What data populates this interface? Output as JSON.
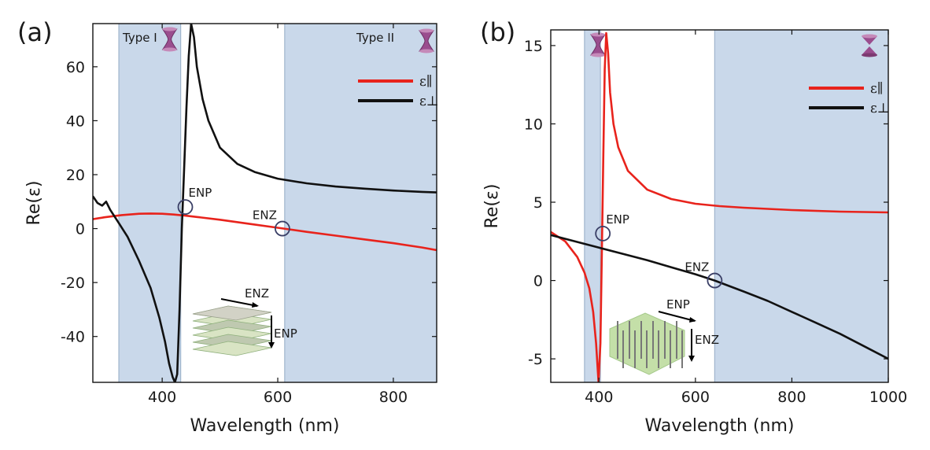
{
  "colors": {
    "band": "#c9d8ea",
    "band_edge": "#9fb4cc",
    "parallel": "#e8231c",
    "perpendicular": "#111111",
    "marker": "#3a3f66",
    "hourglass": "#9a4d8e",
    "inset_a": "#bfc9b0",
    "inset_b": "#c4dfa8"
  },
  "chart_data": [
    {
      "panel_label": "(a)",
      "type": "line",
      "xlabel": "Wavelength (nm)",
      "ylabel": "Re(ε)",
      "xlim": [
        280,
        875
      ],
      "ylim": [
        -57,
        76
      ],
      "xticks": [
        400,
        600,
        800
      ],
      "yticks": [
        -40,
        -20,
        0,
        20,
        40,
        60
      ],
      "grid": false,
      "legend_position": "top-right",
      "shaded_regions": [
        {
          "x0": 325,
          "x1": 432,
          "label": "Type I",
          "icon": "hourglass-type-i-icon"
        },
        {
          "x0": 612,
          "x1": 875,
          "label": "Type II",
          "icon": "hourglass-type-ii-icon"
        }
      ],
      "series": [
        {
          "name": "ε∥",
          "color_key": "parallel",
          "x": [
            280,
            300,
            330,
            360,
            380,
            400,
            420,
            440,
            460,
            500,
            550,
            600,
            650,
            700,
            750,
            800,
            850,
            875
          ],
          "y": [
            3.5,
            4.2,
            5.0,
            5.5,
            5.6,
            5.5,
            5.2,
            4.8,
            4.3,
            3.3,
            1.8,
            0.3,
            -1.2,
            -2.6,
            -4.0,
            -5.4,
            -7.0,
            -8.0
          ]
        },
        {
          "name": "ε⊥",
          "color_key": "perpendicular",
          "x": [
            280,
            288,
            296,
            303,
            310,
            325,
            340,
            360,
            380,
            395,
            405,
            412,
            418,
            422,
            426,
            430,
            434,
            438,
            442,
            446,
            450,
            455,
            460,
            470,
            480,
            500,
            530,
            560,
            600,
            650,
            700,
            750,
            800,
            850,
            875
          ],
          "y": [
            12.0,
            9.5,
            8.5,
            10.0,
            7.0,
            2.0,
            -3.0,
            -12.0,
            -22.0,
            -33.0,
            -42.0,
            -50.0,
            -55.0,
            -57.0,
            -54.0,
            -30.0,
            0.0,
            22.0,
            45.0,
            64.0,
            76.0,
            71.0,
            60.0,
            48.0,
            40.0,
            30.0,
            24.0,
            21.0,
            18.5,
            16.8,
            15.6,
            14.8,
            14.1,
            13.6,
            13.4
          ]
        }
      ],
      "annotations": [
        {
          "text": "ENP",
          "x": 440,
          "y": 8
        },
        {
          "text": "ENZ",
          "x": 608,
          "y": 0
        }
      ],
      "inset_arrows": [
        "ENZ",
        "ENP"
      ]
    },
    {
      "panel_label": "(b)",
      "type": "line",
      "xlabel": "Wavelength (nm)",
      "ylabel": "Re(ε)",
      "xlim": [
        300,
        1000
      ],
      "ylim": [
        -6.5,
        16
      ],
      "xticks": [
        400,
        600,
        800,
        1000
      ],
      "yticks": [
        -5,
        0,
        5,
        10,
        15
      ],
      "grid": false,
      "legend_position": "top-right",
      "shaded_regions": [
        {
          "x0": 370,
          "x1": 403,
          "label": "",
          "icon": "hourglass-type-i-icon"
        },
        {
          "x0": 640,
          "x1": 1000,
          "label": "",
          "icon": "hourglass-type-ii-icon"
        }
      ],
      "series": [
        {
          "name": "ε∥",
          "color_key": "parallel",
          "x": [
            300,
            330,
            355,
            370,
            380,
            388,
            394,
            399,
            403,
            406,
            409,
            412,
            415,
            419,
            423,
            430,
            440,
            460,
            500,
            550,
            600,
            650,
            700,
            800,
            900,
            1000
          ],
          "y": [
            3.1,
            2.5,
            1.5,
            0.5,
            -0.5,
            -2.0,
            -4.0,
            -6.5,
            -4.0,
            2.0,
            8.0,
            13.5,
            15.8,
            14.5,
            12.0,
            10.0,
            8.5,
            7.0,
            5.8,
            5.2,
            4.9,
            4.75,
            4.65,
            4.5,
            4.4,
            4.35
          ]
        },
        {
          "name": "ε⊥",
          "color_key": "perpendicular",
          "x": [
            300,
            350,
            400,
            450,
            500,
            550,
            600,
            640,
            700,
            750,
            800,
            850,
            900,
            950,
            1000
          ],
          "y": [
            2.9,
            2.5,
            2.1,
            1.7,
            1.3,
            0.85,
            0.4,
            0.0,
            -0.7,
            -1.3,
            -2.0,
            -2.7,
            -3.4,
            -4.2,
            -5.0
          ]
        }
      ],
      "annotations": [
        {
          "text": "ENP",
          "x": 408,
          "y": 3
        },
        {
          "text": "ENZ",
          "x": 640,
          "y": 0
        }
      ],
      "inset_arrows": [
        "ENP",
        "ENZ"
      ]
    }
  ]
}
